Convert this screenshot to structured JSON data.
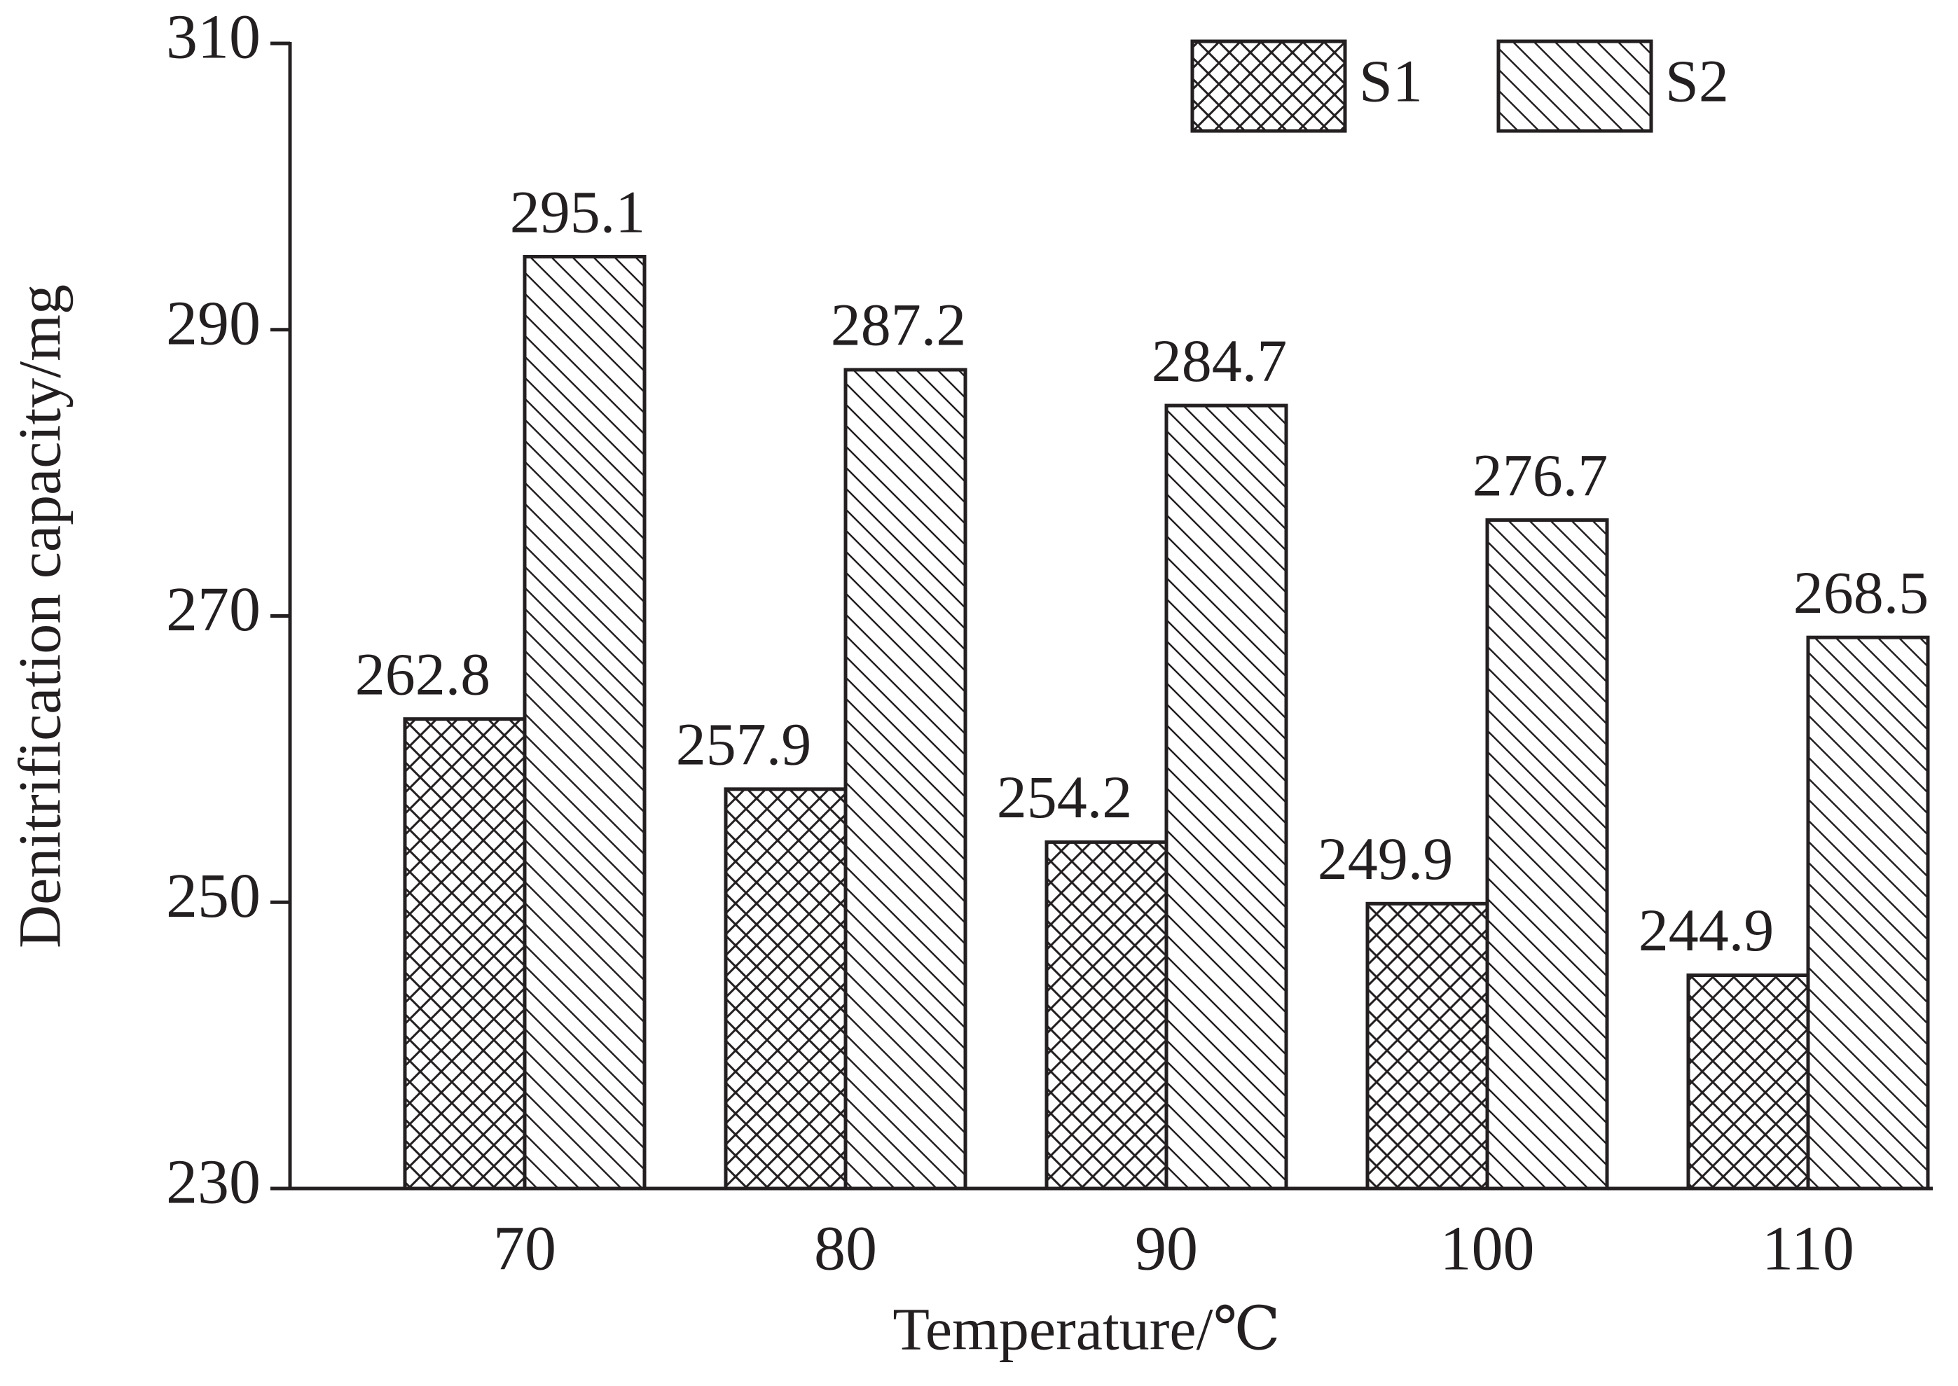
{
  "chart_data": {
    "type": "bar",
    "x_label": "Temperature/℃",
    "y_label": "Denitrification capacity/mg",
    "categories": [
      "70",
      "80",
      "90",
      "100",
      "110"
    ],
    "series": [
      {
        "name": "S1",
        "color": "#231f20",
        "hatch": "crosshatch",
        "values": [
          262.8,
          257.9,
          254.2,
          249.9,
          244.9
        ]
      },
      {
        "name": "S2",
        "color": "#231f20",
        "hatch": "diagonal",
        "values": [
          295.1,
          287.2,
          284.7,
          276.7,
          268.5
        ]
      }
    ],
    "ylim": [
      230,
      310
    ],
    "yticks": [
      230,
      250,
      270,
      290,
      310
    ],
    "grid": false,
    "legend": "top-right"
  }
}
